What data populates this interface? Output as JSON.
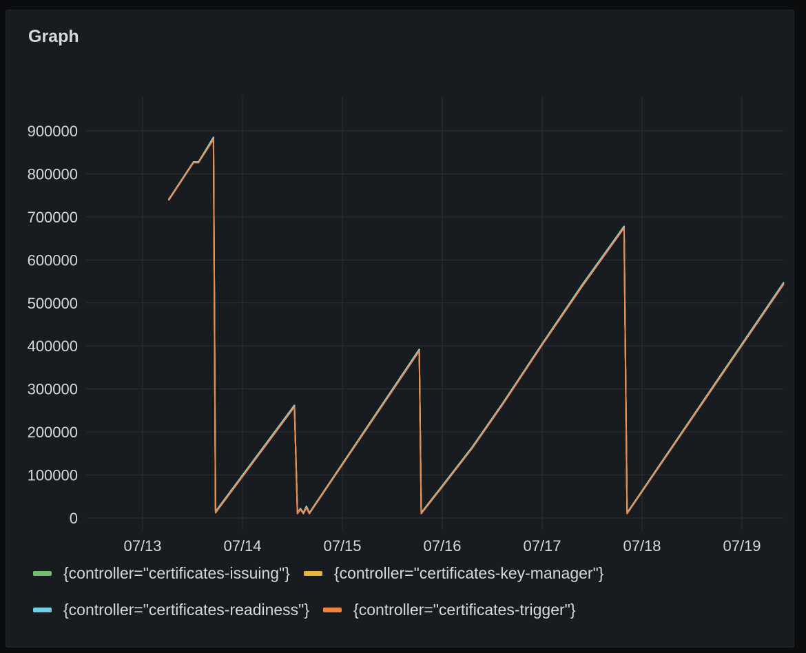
{
  "panel": {
    "title": "Graph"
  },
  "chart_data": {
    "type": "line",
    "title": "Graph",
    "xlabel": "",
    "ylabel": "",
    "x_ticks": [
      "07/13",
      "07/14",
      "07/15",
      "07/16",
      "07/17",
      "07/18",
      "07/19"
    ],
    "y_ticks": [
      0,
      100000,
      200000,
      300000,
      400000,
      500000,
      600000,
      700000,
      800000,
      900000
    ],
    "ylim": [
      0,
      980000
    ],
    "xlim": [
      -0.6,
      6.42
    ],
    "grid": true,
    "legend_position": "bottom",
    "series": [
      {
        "name": "{controller=\"certificates-issuing\"}",
        "color": "#73bf69",
        "points": [
          [
            0.26,
            740000
          ],
          [
            0.51,
            828000
          ],
          [
            0.56,
            828000
          ],
          [
            0.71,
            885000
          ],
          [
            0.73,
            15000
          ],
          [
            1.52,
            262000
          ],
          [
            1.55,
            12000
          ],
          [
            1.58,
            22000
          ],
          [
            1.61,
            12000
          ],
          [
            1.64,
            27000
          ],
          [
            1.67,
            12000
          ],
          [
            2.77,
            392000
          ],
          [
            2.79,
            12000
          ],
          [
            3.0,
            75000
          ],
          [
            3.3,
            165000
          ],
          [
            3.6,
            265000
          ],
          [
            4.0,
            405000
          ],
          [
            4.4,
            542000
          ],
          [
            4.82,
            678000
          ],
          [
            4.85,
            12000
          ],
          [
            6.42,
            548000
          ]
        ]
      },
      {
        "name": "{controller=\"certificates-key-manager\"}",
        "color": "#fade2a",
        "points": [
          [
            0.26,
            740000
          ],
          [
            0.51,
            828000
          ],
          [
            0.56,
            828000
          ],
          [
            0.71,
            885000
          ],
          [
            0.73,
            15000
          ],
          [
            1.52,
            262000
          ],
          [
            1.55,
            12000
          ],
          [
            1.58,
            22000
          ],
          [
            1.61,
            12000
          ],
          [
            1.64,
            27000
          ],
          [
            1.67,
            12000
          ],
          [
            2.77,
            392000
          ],
          [
            2.79,
            12000
          ],
          [
            3.0,
            75000
          ],
          [
            3.3,
            165000
          ],
          [
            3.6,
            265000
          ],
          [
            4.0,
            405000
          ],
          [
            4.4,
            542000
          ],
          [
            4.82,
            678000
          ],
          [
            4.85,
            12000
          ],
          [
            6.42,
            548000
          ]
        ]
      },
      {
        "name": "{controller=\"certificates-readiness\"}",
        "color": "#73d0e8",
        "points": [
          [
            0.26,
            740000
          ],
          [
            0.51,
            828000
          ],
          [
            0.56,
            828000
          ],
          [
            0.71,
            885000
          ],
          [
            0.73,
            15000
          ],
          [
            1.52,
            262000
          ],
          [
            1.55,
            12000
          ],
          [
            1.58,
            22000
          ],
          [
            1.61,
            12000
          ],
          [
            1.64,
            27000
          ],
          [
            1.67,
            12000
          ],
          [
            2.77,
            392000
          ],
          [
            2.79,
            12000
          ],
          [
            3.0,
            75000
          ],
          [
            3.3,
            165000
          ],
          [
            3.6,
            265000
          ],
          [
            4.0,
            405000
          ],
          [
            4.4,
            542000
          ],
          [
            4.82,
            678000
          ],
          [
            4.85,
            12000
          ],
          [
            6.42,
            548000
          ]
        ]
      },
      {
        "name": "{controller=\"certificates-trigger\"}",
        "color": "#f2884a",
        "points": [
          [
            0.26,
            738000
          ],
          [
            0.51,
            826000
          ],
          [
            0.56,
            826000
          ],
          [
            0.71,
            880000
          ],
          [
            0.73,
            12000
          ],
          [
            1.52,
            258000
          ],
          [
            1.55,
            10000
          ],
          [
            1.58,
            20000
          ],
          [
            1.61,
            10000
          ],
          [
            1.64,
            24000
          ],
          [
            1.67,
            10000
          ],
          [
            2.77,
            388000
          ],
          [
            2.79,
            10000
          ],
          [
            3.0,
            72000
          ],
          [
            3.3,
            162000
          ],
          [
            3.6,
            262000
          ],
          [
            4.0,
            402000
          ],
          [
            4.4,
            538000
          ],
          [
            4.82,
            674000
          ],
          [
            4.85,
            10000
          ],
          [
            6.42,
            544000
          ]
        ]
      }
    ]
  },
  "legend": {
    "rows": [
      [
        {
          "label": "{controller=\"certificates-issuing\"}",
          "color": "#73bf69"
        },
        {
          "label": "{controller=\"certificates-key-manager\"}",
          "color": "#eab839"
        }
      ],
      [
        {
          "label": "{controller=\"certificates-readiness\"}",
          "color": "#6ed0e0"
        },
        {
          "label": "{controller=\"certificates-trigger\"}",
          "color": "#ef843c"
        }
      ]
    ]
  }
}
